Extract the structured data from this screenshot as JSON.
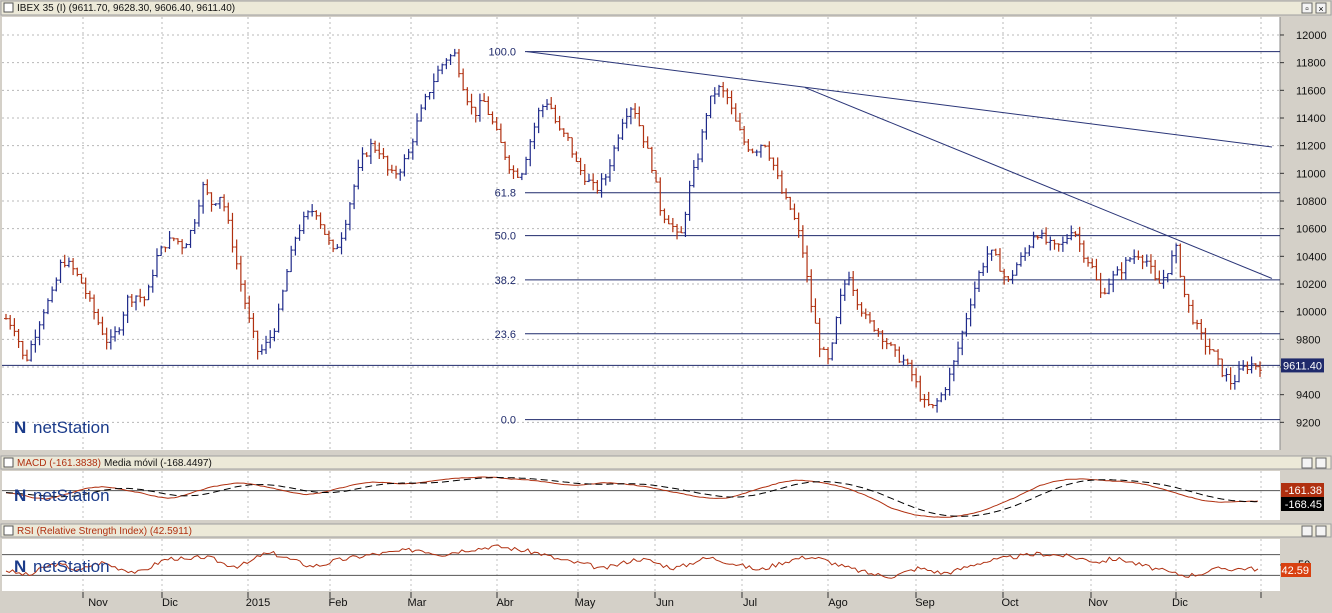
{
  "chart_data": [
    {
      "type": "ohlc",
      "title": "IBEX 35 (I) (9611.70, 9628.30, 9606.40, 9611.40)",
      "last_value": "9611.40",
      "y_ticks": [
        "12000",
        "11800",
        "11600",
        "11400",
        "11200",
        "11000",
        "10800",
        "10600",
        "10400",
        "10200",
        "10000",
        "9800",
        "9600",
        "9400",
        "9200"
      ],
      "ylim": [
        9000,
        12130
      ],
      "x_ticks": [
        "Nov",
        "Dic",
        "2015",
        "Feb",
        "Mar",
        "Abr",
        "May",
        "Jun",
        "Jul",
        "Ago",
        "Sep",
        "Oct",
        "Nov",
        "Dic"
      ],
      "grid": true,
      "fibonacci_levels": [
        {
          "label": "100.0",
          "value": 11880
        },
        {
          "label": "61.8",
          "value": 10860
        },
        {
          "label": "50.0",
          "value": 10550
        },
        {
          "label": "38.2",
          "value": 10230
        },
        {
          "label": "23.6",
          "value": 9840
        },
        {
          "label": "0.0",
          "value": 9220
        }
      ],
      "price_line": 9611.4,
      "trendlines": [
        {
          "from": {
            "x": "Abr",
            "y": 11880
          },
          "to": {
            "x": "Dic",
            "y": 11190
          }
        },
        {
          "from": {
            "x": "Jul",
            "y": 11620
          },
          "to": {
            "x": "Dic",
            "y": 10240
          }
        }
      ],
      "colors": {
        "up": "#1f2a8a",
        "down": "#b03010",
        "grid": "#b8b8b8",
        "fib": "#1f2a6b"
      },
      "price_path": [
        9950,
        9880,
        9620,
        9820,
        10010,
        10130,
        10380,
        10320,
        10220,
        10060,
        9900,
        9760,
        9880,
        10090,
        10120,
        10080,
        10380,
        10490,
        10530,
        10470,
        10620,
        10910,
        10780,
        10850,
        10560,
        10230,
        9930,
        9690,
        9780,
        9940,
        10280,
        10560,
        10680,
        10750,
        10580,
        10420,
        10580,
        10860,
        11100,
        11200,
        11160,
        10980,
        11020,
        11140,
        11380,
        11560,
        11720,
        11830,
        11860,
        11600,
        11420,
        11530,
        11360,
        11190,
        11020,
        10990,
        11230,
        11460,
        11530,
        11310,
        11250,
        11060,
        10960,
        10880,
        10960,
        11180,
        11420,
        11500,
        11280,
        11060,
        10720,
        10650,
        10500,
        10880,
        11140,
        11490,
        11620,
        11560,
        11360,
        11210,
        11160,
        11240,
        11060,
        10840,
        10720,
        10500,
        10060,
        9740,
        9620,
        10050,
        10290,
        10080,
        9930,
        9880,
        9790,
        9690,
        9640,
        9520,
        9340,
        9300,
        9400,
        9560,
        9800,
        10060,
        10280,
        10440,
        10360,
        10200,
        10340,
        10430,
        10590,
        10510,
        10460,
        10490,
        10620,
        10440,
        10330,
        10120,
        10230,
        10290,
        10380,
        10420,
        10360,
        10180,
        10280,
        10460,
        10100,
        9920,
        9780,
        9700,
        9560,
        9480,
        9580,
        9620,
        9611
      ]
    },
    {
      "type": "line",
      "title": "MACD (-161.3838)",
      "ma_label": "Media móvil (-168.4497)",
      "tag_macd": "-161.38",
      "tag_ma": "-168.45",
      "ylim": [
        -450,
        300
      ],
      "colors": {
        "macd": "#b03010",
        "ma": "#000000"
      },
      "macd": [
        -30,
        -60,
        -110,
        -130,
        -80,
        -20,
        40,
        60,
        40,
        0,
        -40,
        -90,
        -120,
        -80,
        -10,
        50,
        90,
        120,
        100,
        60,
        20,
        -30,
        -60,
        -40,
        10,
        60,
        110,
        130,
        120,
        100,
        110,
        140,
        170,
        190,
        200,
        210,
        200,
        180,
        170,
        150,
        120,
        90,
        80,
        100,
        120,
        110,
        90,
        60,
        20,
        -20,
        -60,
        -100,
        -120,
        -110,
        -60,
        10,
        70,
        130,
        160,
        150,
        120,
        80,
        20,
        -60,
        -150,
        -260,
        -330,
        -380,
        -400,
        -410,
        -390,
        -350,
        -290,
        -210,
        -120,
        -20,
        80,
        140,
        170,
        180,
        170,
        150,
        140,
        120,
        80,
        20,
        -40,
        -100,
        -150,
        -180,
        -170,
        -165,
        -161
      ]
    },
    {
      "type": "line",
      "title": "RSI (Relative Strength Index) (42.5911)",
      "tag": "42.59",
      "y_tick": "50",
      "ylim": [
        0,
        100
      ],
      "bands": [
        30,
        70
      ],
      "colors": {
        "rsi": "#b03010",
        "band": "#555555"
      },
      "rsi": [
        40,
        34,
        30,
        44,
        52,
        48,
        38,
        50,
        55,
        46,
        40,
        35,
        48,
        60,
        64,
        58,
        66,
        62,
        52,
        48,
        54,
        70,
        72,
        64,
        56,
        48,
        50,
        58,
        62,
        66,
        70,
        72,
        75,
        78,
        80,
        74,
        70,
        76,
        80,
        82,
        86,
        84,
        80,
        76,
        72,
        64,
        58,
        54,
        50,
        42,
        48,
        56,
        62,
        58,
        50,
        44,
        50,
        60,
        64,
        58,
        52,
        46,
        40,
        48,
        56,
        62,
        66,
        62,
        54,
        46,
        40,
        34,
        30,
        28,
        36,
        44,
        40,
        34,
        38,
        46,
        54,
        58,
        62,
        66,
        68,
        72,
        70,
        68,
        64,
        60,
        56,
        62,
        60,
        52,
        46,
        40,
        34,
        30,
        32,
        38,
        44,
        42,
        44,
        42
      ]
    }
  ],
  "logo": "netStation",
  "panel_titles": {
    "main": "IBEX 35 (I) (9611.70, 9628.30, 9606.40, 9611.40)"
  }
}
